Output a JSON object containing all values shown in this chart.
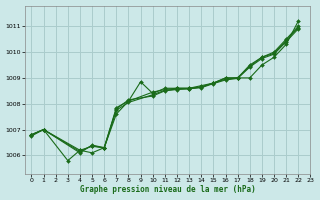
{
  "title": "Graphe pression niveau de la mer (hPa)",
  "xlim": [
    -0.5,
    23
  ],
  "ylim": [
    1005.3,
    1011.8
  ],
  "yticks": [
    1006,
    1007,
    1008,
    1009,
    1010,
    1011
  ],
  "xticks": [
    0,
    1,
    2,
    3,
    4,
    5,
    6,
    7,
    8,
    9,
    10,
    11,
    12,
    13,
    14,
    15,
    16,
    17,
    18,
    19,
    20,
    21,
    22,
    23
  ],
  "background_color": "#cce8e8",
  "grid_color": "#aacccc",
  "line_color": "#1a6b1a",
  "series": [
    {
      "x": [
        0,
        1,
        3,
        4,
        5,
        6,
        7,
        8,
        9,
        10,
        11,
        12,
        13,
        14,
        15,
        16,
        17,
        18,
        19,
        20,
        21,
        22
      ],
      "y": [
        1006.8,
        1007.0,
        1005.8,
        1006.2,
        1006.1,
        1006.3,
        1007.6,
        1008.1,
        1008.85,
        1008.4,
        1008.6,
        1008.6,
        1008.6,
        1008.7,
        1008.8,
        1009.0,
        1009.0,
        1009.0,
        1009.5,
        1009.8,
        1010.3,
        1011.2
      ]
    },
    {
      "x": [
        0,
        1,
        4,
        5,
        6,
        7,
        8,
        10,
        11,
        12,
        13,
        14,
        15,
        16,
        17,
        18,
        19,
        20,
        21,
        22
      ],
      "y": [
        1006.8,
        1007.0,
        1006.2,
        1006.35,
        1006.3,
        1007.85,
        1008.1,
        1008.45,
        1008.55,
        1008.6,
        1008.6,
        1008.65,
        1008.8,
        1008.95,
        1009.0,
        1009.45,
        1009.8,
        1010.0,
        1010.5,
        1011.0
      ]
    },
    {
      "x": [
        0,
        1,
        4,
        5,
        6,
        7,
        8,
        10,
        11,
        12,
        13,
        14,
        15,
        16,
        17,
        18,
        19,
        20,
        21,
        22
      ],
      "y": [
        1006.8,
        1007.0,
        1006.1,
        1006.4,
        1006.3,
        1007.8,
        1008.15,
        1008.3,
        1008.5,
        1008.55,
        1008.58,
        1008.65,
        1008.8,
        1009.0,
        1009.0,
        1009.5,
        1009.8,
        1009.95,
        1010.45,
        1010.95
      ]
    },
    {
      "x": [
        0,
        1,
        4,
        5,
        6,
        7,
        8,
        10,
        11,
        12,
        13,
        14,
        15,
        16,
        17,
        18,
        19,
        20,
        21,
        22
      ],
      "y": [
        1006.75,
        1007.0,
        1006.15,
        1006.38,
        1006.28,
        1007.75,
        1008.05,
        1008.35,
        1008.52,
        1008.57,
        1008.58,
        1008.62,
        1008.78,
        1008.92,
        1008.98,
        1009.42,
        1009.75,
        1009.92,
        1010.4,
        1010.9
      ]
    }
  ]
}
